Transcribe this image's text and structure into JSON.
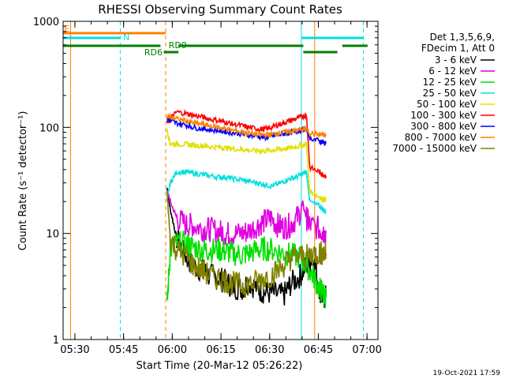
{
  "chart_data": {
    "type": "line",
    "title": "RHESSI Observing Summary Count Rates",
    "xlabel": "Start Time (20-Mar-12 05:26:22)",
    "ylabel": "Count Rate (s⁻¹ detector⁻¹)",
    "yscale": "log",
    "ylim": [
      1,
      1000
    ],
    "xlim_minutes": [
      0,
      97
    ],
    "x_ticks": [
      "05:30",
      "05:45",
      "06:00",
      "06:15",
      "06:30",
      "06:45",
      "07:00"
    ],
    "y_ticks": [
      "1",
      "10",
      "100",
      "1000"
    ],
    "grid": false,
    "legend_position": "top-right",
    "legend_header": [
      "Det 1,3,5,6,9,",
      "FDecim 1, Att 0"
    ],
    "footer": "19-Oct-2021 17:59",
    "series": [
      {
        "name": "3 - 6 keV",
        "color": "#000000",
        "x": [
          32,
          33,
          35,
          38,
          40,
          43,
          45,
          48,
          50,
          52,
          55,
          57,
          60,
          62,
          65,
          68,
          70,
          73,
          75,
          77,
          79,
          80,
          81
        ],
        "y": [
          27,
          17,
          9,
          6,
          5,
          4.5,
          4,
          3.8,
          3.5,
          3.2,
          3,
          3.5,
          3,
          2.8,
          2.7,
          2.6,
          3.3,
          4,
          5,
          6,
          3,
          2.5,
          2.5
        ]
      },
      {
        "name": "6 - 12 keV",
        "color": "#e000e0",
        "x": [
          32,
          33,
          35,
          38,
          40,
          43,
          45,
          48,
          50,
          52,
          55,
          57,
          60,
          62,
          64,
          66,
          68,
          70,
          72,
          74,
          75,
          76,
          79,
          80,
          81
        ],
        "y": [
          26,
          20,
          14,
          12,
          12,
          11,
          11,
          10.5,
          10,
          10,
          10,
          10.5,
          12,
          13,
          14,
          12,
          11.5,
          12,
          14,
          18,
          14,
          12,
          11,
          10.5,
          10
        ]
      },
      {
        "name": "12 - 25 keV",
        "color": "#00e000",
        "x": [
          32,
          33,
          35,
          38,
          40,
          43,
          45,
          48,
          50,
          52,
          55,
          57,
          60,
          62,
          65,
          68,
          70,
          73,
          75,
          77,
          79,
          80,
          81
        ],
        "y": [
          2,
          7,
          8,
          8,
          7.5,
          7,
          7,
          7,
          6.8,
          6.5,
          6.3,
          6.5,
          7,
          7.2,
          7,
          6.5,
          6.3,
          6,
          5,
          4,
          3,
          2.8,
          2.5
        ]
      },
      {
        "name": "25 - 50 keV",
        "color": "#00e0e0",
        "x": [
          32,
          33,
          35,
          38,
          40,
          43,
          45,
          48,
          50,
          52,
          55,
          57,
          60,
          62,
          64,
          66,
          68,
          70,
          72,
          74,
          75,
          76,
          79,
          80,
          81
        ],
        "y": [
          20,
          30,
          38,
          38,
          37,
          36,
          35,
          34,
          34,
          33,
          32,
          31,
          30,
          29,
          28,
          29,
          31,
          33,
          34,
          37,
          38,
          20,
          18,
          17,
          16
        ]
      },
      {
        "name": "50 - 100 keV",
        "color": "#e0e000",
        "x": [
          32,
          33,
          35,
          38,
          40,
          43,
          45,
          48,
          50,
          52,
          55,
          57,
          60,
          62,
          64,
          66,
          68,
          70,
          72,
          74,
          75,
          76,
          79,
          80,
          81
        ],
        "y": [
          95,
          70,
          70,
          69,
          68,
          67,
          66,
          65,
          64,
          63,
          62,
          61,
          60,
          60,
          61,
          62,
          63,
          64,
          66,
          68,
          70,
          25,
          22,
          21,
          21
        ]
      },
      {
        "name": "100 - 300 keV",
        "color": "#ff0000",
        "x": [
          32,
          33,
          35,
          38,
          40,
          43,
          45,
          48,
          50,
          52,
          55,
          57,
          60,
          62,
          64,
          66,
          68,
          70,
          72,
          74,
          75,
          76,
          79,
          80,
          81
        ],
        "y": [
          110,
          120,
          140,
          135,
          130,
          125,
          120,
          116,
          112,
          108,
          104,
          100,
          97,
          96,
          100,
          105,
          110,
          116,
          122,
          128,
          130,
          42,
          38,
          36,
          35
        ]
      },
      {
        "name": "300 - 800 keV",
        "color": "#0000ff",
        "x": [
          32,
          33,
          35,
          38,
          40,
          43,
          45,
          48,
          50,
          52,
          55,
          57,
          60,
          62,
          64,
          66,
          68,
          70,
          72,
          74,
          75,
          76,
          79,
          80,
          81
        ],
        "y": [
          120,
          115,
          110,
          105,
          100,
          97,
          95,
          93,
          91,
          89,
          87,
          85,
          82,
          80,
          82,
          85,
          87,
          89,
          92,
          95,
          97,
          80,
          74,
          72,
          70
        ]
      },
      {
        "name": "800 - 7000 keV",
        "color": "#ff8000",
        "x": [
          32,
          33,
          35,
          38,
          40,
          43,
          45,
          48,
          50,
          52,
          55,
          57,
          60,
          62,
          64,
          66,
          68,
          70,
          72,
          74,
          75,
          76,
          79,
          80,
          81
        ],
        "y": [
          130,
          125,
          120,
          115,
          110,
          107,
          104,
          100,
          97,
          94,
          91,
          88,
          86,
          85,
          86,
          88,
          90,
          92,
          94,
          96,
          97,
          88,
          86,
          85,
          84
        ]
      },
      {
        "name": "7000 - 15000 keV",
        "color": "#808000",
        "x": [
          32,
          33,
          35,
          38,
          40,
          43,
          45,
          48,
          50,
          52,
          55,
          57,
          60,
          62,
          65,
          68,
          70,
          73,
          75,
          77,
          79,
          80,
          81
        ],
        "y": [
          25,
          9,
          7,
          6,
          5,
          4.5,
          4,
          3.8,
          3.6,
          3.4,
          3.2,
          3.3,
          3.5,
          3.8,
          4.2,
          5,
          5.8,
          6.2,
          6,
          6.5,
          6.5,
          6.5,
          6.5
        ]
      }
    ],
    "annotations": [
      {
        "label": "E",
        "color": "#ff8000"
      },
      {
        "label": "N",
        "color": "#00e0e0"
      },
      {
        "label": "RD6",
        "color": "#008000"
      },
      {
        "label": "RD9",
        "color": "#008000"
      }
    ],
    "night_segments": [
      [
        0,
        17.6
      ],
      [
        73.4,
        92.5
      ]
    ],
    "eclipse_segment": [
      0,
      31.6
    ],
    "rd_segments": [
      [
        0,
        30
      ],
      [
        31,
        35.5
      ],
      [
        35.5,
        74
      ],
      [
        74,
        84.5
      ],
      [
        86,
        93.8
      ]
    ],
    "vlines": [
      {
        "x": 2.3,
        "color": "#ff8000",
        "style": "solid"
      },
      {
        "x": 17.6,
        "color": "#00e0e0",
        "style": "dashed"
      },
      {
        "x": 31.6,
        "color": "#ff8000",
        "style": "dashed"
      },
      {
        "x": 73.4,
        "color": "#00e0e0",
        "style": "solid"
      },
      {
        "x": 77.5,
        "color": "#ff8000",
        "style": "solid"
      },
      {
        "x": 92.5,
        "color": "#00e0e0",
        "style": "dashed"
      }
    ]
  }
}
